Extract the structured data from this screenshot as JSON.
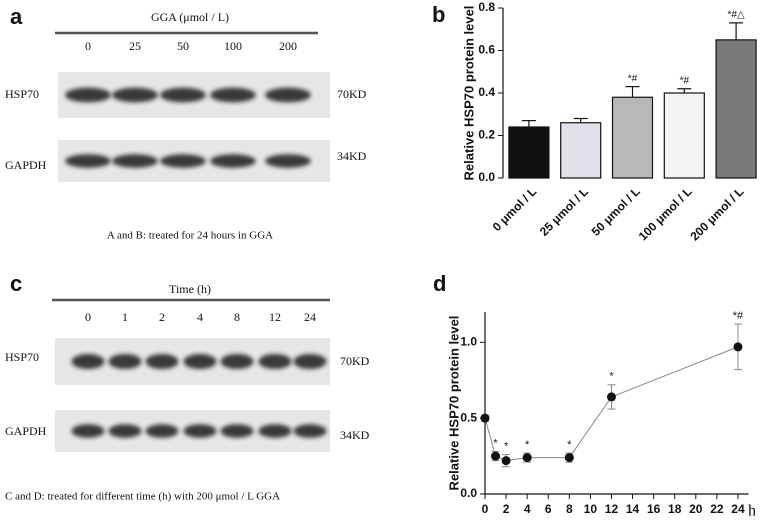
{
  "blots": [
    {
      "panel_label": "a",
      "title": "GGA (μmol / L)",
      "lanes": [
        "0",
        "25",
        "50",
        "100",
        "200"
      ],
      "rows": [
        {
          "name": "HSP70",
          "size": "70KD"
        },
        {
          "name": "GAPDH",
          "size": "34KD"
        }
      ],
      "caption": "A and B: treated for 24 hours in GGA"
    },
    {
      "panel_label": "c",
      "title": "Time (h)",
      "lanes": [
        "0",
        "1",
        "2",
        "4",
        "8",
        "12",
        "24"
      ],
      "rows": [
        {
          "name": "HSP70",
          "size": "70KD"
        },
        {
          "name": "GAPDH",
          "size": "34KD"
        }
      ],
      "caption": "C and D: treated for different time (h) with 200 μmol / L GGA"
    }
  ],
  "chart_data": [
    {
      "type": "bar",
      "panel_label": "b",
      "ylabel": "Relative HSP70 protein level",
      "categories": [
        "0 μmol / L",
        "25 μmol / L",
        "50 μmol / L",
        "100 μmol / L",
        "200 μmol / L"
      ],
      "values": [
        0.24,
        0.26,
        0.38,
        0.4,
        0.65
      ],
      "errors": [
        0.03,
        0.02,
        0.05,
        0.02,
        0.08
      ],
      "colors": [
        "#111111",
        "#e2e0e8",
        "#b8b8b8",
        "#f3f3f3",
        "#7a7a7a"
      ],
      "annotations": [
        null,
        null,
        "*#",
        "*#",
        "*#△"
      ],
      "ylim": [
        0,
        0.8
      ],
      "yticks": [
        {
          "value": 0,
          "label": "0.0"
        },
        0.2,
        0.4,
        0.6,
        0.8
      ]
    },
    {
      "type": "line",
      "panel_label": "d",
      "ylabel": "Relative HSP70 protein level",
      "xlabel": "h",
      "x": [
        0,
        1,
        2,
        4,
        8,
        12,
        24
      ],
      "values": [
        0.5,
        0.25,
        0.22,
        0.24,
        0.24,
        0.64,
        0.97
      ],
      "errors": [
        0.02,
        0.03,
        0.04,
        0.03,
        0.03,
        0.08,
        0.15
      ],
      "annotations": [
        null,
        "*",
        "*",
        "*",
        "*",
        "*",
        "*#"
      ],
      "color": "#111111",
      "xlim": [
        0,
        25
      ],
      "xticks": [
        0,
        2,
        4,
        6,
        8,
        10,
        12,
        14,
        16,
        18,
        20,
        22,
        24
      ],
      "ylim": [
        0,
        1.2
      ],
      "yticks": [
        {
          "value": 0,
          "label": "0.0"
        },
        0.5,
        {
          "value": 1,
          "label": "1.0"
        }
      ]
    }
  ]
}
